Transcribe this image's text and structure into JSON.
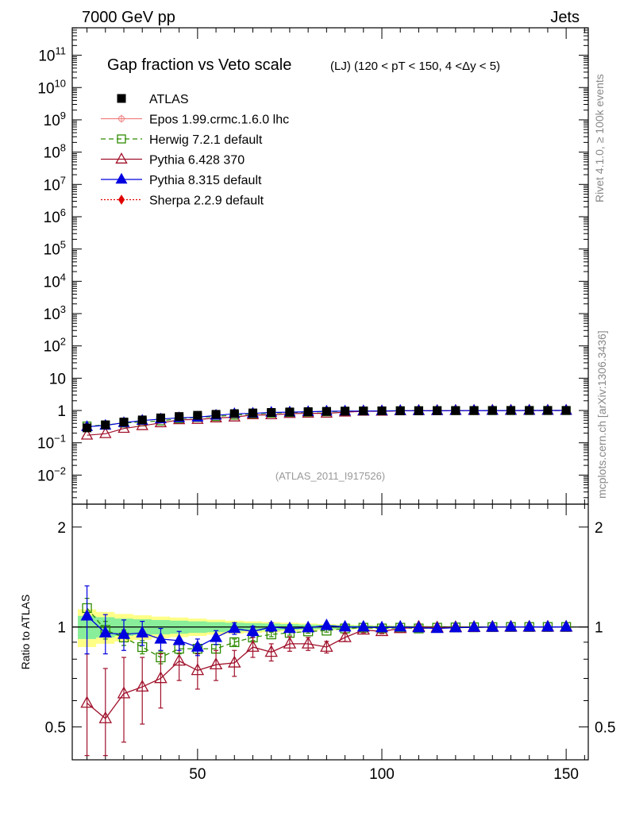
{
  "header": {
    "left": "7000 GeV pp",
    "right": "Jets"
  },
  "side_text": {
    "rivet": "Rivet 4.1.0, ≥ 100k events",
    "mcplots": "mcplots.cern.ch [arXiv:1306.3436]"
  },
  "chart_data": {
    "type": "scatter",
    "title_main": "Gap fraction vs Veto scale",
    "title_sub": "(LJ) (120 < pT < 150, 4 <Δy < 5)",
    "watermark": "(ATLAS_2011_I917526)",
    "ylabel_ratio": "Ratio to ATLAS",
    "xlim": [
      16,
      156
    ],
    "xticks": [
      50,
      100,
      150
    ],
    "ylim_main_log10": [
      -2.9,
      11.85
    ],
    "ylim_ratio_log10": [
      -0.4,
      0.37
    ],
    "ylabels_main": [
      {
        "exp": -2,
        "text": "10",
        "sup": "−2"
      },
      {
        "exp": -1,
        "text": "10",
        "sup": "−1"
      },
      {
        "exp": 0,
        "text": "1",
        "sup": ""
      },
      {
        "exp": 1,
        "text": "10",
        "sup": ""
      },
      {
        "exp": 2,
        "text": "10",
        "sup": "2"
      },
      {
        "exp": 3,
        "text": "10",
        "sup": "3"
      },
      {
        "exp": 4,
        "text": "10",
        "sup": "4"
      },
      {
        "exp": 5,
        "text": "10",
        "sup": "5"
      },
      {
        "exp": 6,
        "text": "10",
        "sup": "6"
      },
      {
        "exp": 7,
        "text": "10",
        "sup": "7"
      },
      {
        "exp": 8,
        "text": "10",
        "sup": "8"
      },
      {
        "exp": 9,
        "text": "10",
        "sup": "9"
      },
      {
        "exp": 10,
        "text": "10",
        "sup": "10"
      },
      {
        "exp": 11,
        "text": "10",
        "sup": "11"
      }
    ],
    "ratio_labels": [
      {
        "value": 0.5,
        "text": "0.5"
      },
      {
        "value": 1,
        "text": "1"
      },
      {
        "value": 2,
        "text": "2"
      }
    ],
    "x": [
      20,
      25,
      30,
      35,
      40,
      45,
      50,
      55,
      60,
      65,
      70,
      75,
      80,
      85,
      90,
      95,
      100,
      105,
      110,
      115,
      120,
      125,
      130,
      135,
      140,
      145,
      150
    ],
    "atlas": [
      0.29,
      0.36,
      0.44,
      0.51,
      0.59,
      0.65,
      0.71,
      0.76,
      0.8,
      0.84,
      0.87,
      0.9,
      0.92,
      0.94,
      0.955,
      0.965,
      0.975,
      0.983,
      0.988,
      0.992,
      0.995,
      0.997,
      0.998,
      0.999,
      1.0,
      1.0,
      1.0
    ],
    "band_inner": [
      0.08,
      0.07,
      0.06,
      0.055,
      0.05,
      0.045,
      0.04,
      0.035,
      0.03,
      0.027,
      0.024,
      0.02,
      0.017,
      0.015,
      0.012,
      0.01,
      0.008,
      0.007,
      0.006,
      0.005,
      0.004,
      0.004,
      0.003,
      0.003,
      0.003,
      0.003,
      0.003
    ],
    "band_outer": [
      0.13,
      0.11,
      0.095,
      0.085,
      0.075,
      0.068,
      0.06,
      0.052,
      0.045,
      0.04,
      0.035,
      0.03,
      0.025,
      0.021,
      0.017,
      0.014,
      0.011,
      0.009,
      0.008,
      0.007,
      0.006,
      0.005,
      0.004,
      0.004,
      0.004,
      0.004,
      0.004
    ],
    "series": [
      {
        "name": "ATLAS",
        "color": "#000000",
        "marker": "square-filled",
        "line": "none"
      },
      {
        "name": "Epos 1.99.crmc.1.6.0 lhc",
        "color": "#f08080",
        "marker": "crosshair",
        "line": "solid",
        "ratio": [],
        "err": []
      },
      {
        "name": "Herwig 7.2.1 default",
        "color": "#2e8b00",
        "marker": "square-open",
        "line": "dashed",
        "ratio": [
          1.14,
          0.98,
          0.93,
          0.87,
          0.81,
          0.86,
          0.86,
          0.86,
          0.9,
          0.93,
          0.95,
          0.96,
          0.97,
          0.975,
          0.99,
          0.995,
          0.99,
          0.995,
          0.99,
          0.995,
          0.997,
          0.998,
          0.999,
          1.0,
          1.0,
          1.0,
          1.0
        ],
        "err": [
          0.08,
          0.06,
          0.05,
          0.04,
          0.035,
          0.03,
          0.03,
          0.025,
          0.02,
          0.02,
          0.015,
          0.015,
          0.012,
          0.01,
          0.008,
          0.006,
          0.005,
          0.004,
          0.004,
          0.003,
          0.003,
          0.003,
          0.002,
          0.002,
          0.002,
          0.002,
          0.002
        ]
      },
      {
        "name": "Pythia 6.428 370",
        "color": "#a0102a",
        "marker": "triangle-open",
        "line": "solid",
        "ratio": [
          0.59,
          0.53,
          0.63,
          0.66,
          0.7,
          0.79,
          0.74,
          0.77,
          0.78,
          0.87,
          0.84,
          0.89,
          0.89,
          0.87,
          0.93,
          0.98,
          0.97,
          0.99,
          1.0,
          0.995,
          0.997,
          0.998,
          0.999,
          1.0,
          1.0,
          1.0,
          1.0
        ],
        "err": [
          0.24,
          0.22,
          0.18,
          0.15,
          0.13,
          0.1,
          0.09,
          0.08,
          0.07,
          0.06,
          0.05,
          0.045,
          0.04,
          0.035,
          0.025,
          0.02,
          0.015,
          0.01,
          0.008,
          0.006,
          0.005,
          0.004,
          0.003,
          0.003,
          0.003,
          0.003,
          0.003
        ]
      },
      {
        "name": "Pythia 8.315 default",
        "color": "#0000e0",
        "marker": "triangle-filled",
        "line": "solid",
        "ratio": [
          1.08,
          0.96,
          0.95,
          0.96,
          0.92,
          0.91,
          0.87,
          0.93,
          0.99,
          0.97,
          1.0,
          0.99,
          0.995,
          1.01,
          1.0,
          1.0,
          0.995,
          1.0,
          0.995,
          0.99,
          0.995,
          0.998,
          0.999,
          1.0,
          1.0,
          1.0,
          1.0
        ],
        "err": [
          0.25,
          0.13,
          0.1,
          0.08,
          0.07,
          0.06,
          0.05,
          0.045,
          0.04,
          0.035,
          0.03,
          0.025,
          0.02,
          0.015,
          0.012,
          0.01,
          0.008,
          0.006,
          0.005,
          0.004,
          0.003,
          0.003,
          0.003,
          0.002,
          0.002,
          0.002,
          0.002
        ]
      },
      {
        "name": "Sherpa 2.2.9 default",
        "color": "#e00000",
        "marker": "diamond",
        "line": "dotted",
        "ratio": [],
        "err": []
      }
    ]
  }
}
